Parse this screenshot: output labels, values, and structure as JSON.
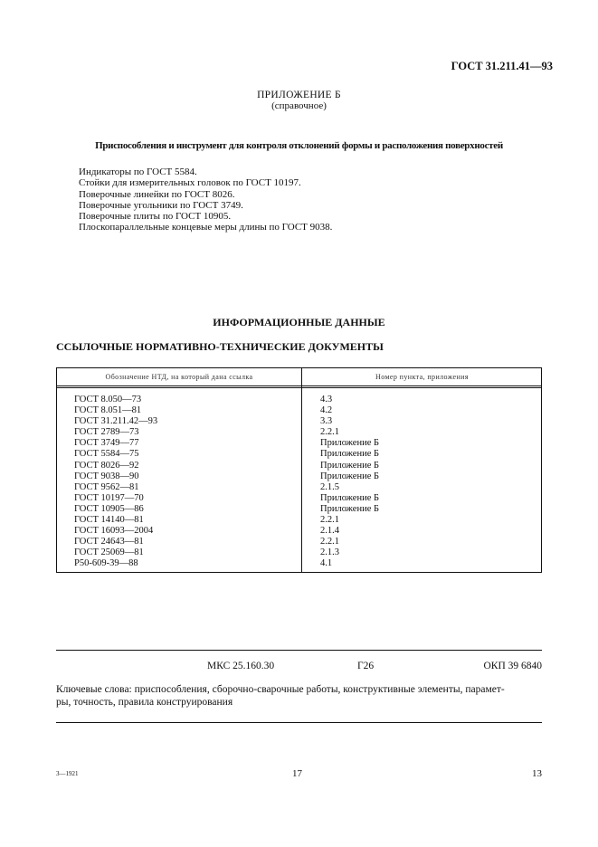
{
  "header": {
    "doc_code": "ГОСТ 31.211.41—93"
  },
  "appendix": {
    "title": "ПРИЛОЖЕНИЕ Б",
    "subtitle": "(справочное)",
    "heading": "Приспособления и инструмент для контроля отклонений формы и расположения поверхностей",
    "items": [
      "Индикаторы по ГОСТ 5584.",
      "Стойки для измерительных головок по ГОСТ 10197.",
      "Поверочные линейки по ГОСТ 8026.",
      "Поверочные угольники по ГОСТ 3749.",
      "Поверочные плиты по ГОСТ 10905.",
      "Плоскопараллельные концевые меры длины по ГОСТ 9038."
    ]
  },
  "info": {
    "title": "ИНФОРМАЦИОННЫЕ ДАННЫЕ",
    "subtitle": "ССЫЛОЧНЫЕ НОРМАТИВНО-ТЕХНИЧЕСКИЕ ДОКУМЕНТЫ"
  },
  "table": {
    "headers": [
      "Обозначение НТД, на который дана ссылка",
      "Номер пункта, приложения"
    ],
    "rows": [
      [
        "ГОСТ 8.050—73",
        "4.3"
      ],
      [
        "ГОСТ 8.051—81",
        "4.2"
      ],
      [
        "ГОСТ 31.211.42—93",
        "3.3"
      ],
      [
        "ГОСТ 2789—73",
        "2.2.1"
      ],
      [
        "ГОСТ 3749—77",
        "Приложение Б"
      ],
      [
        "ГОСТ 5584—75",
        "Приложение Б"
      ],
      [
        "ГОСТ 8026—92",
        "Приложение Б"
      ],
      [
        "ГОСТ 9038—90",
        "Приложение Б"
      ],
      [
        "ГОСТ 9562—81",
        "2.1.5"
      ],
      [
        "ГОСТ 10197—70",
        "Приложение Б"
      ],
      [
        "ГОСТ 10905—86",
        "Приложение Б"
      ],
      [
        "ГОСТ 14140—81",
        "2.2.1"
      ],
      [
        "ГОСТ 16093—2004",
        "2.1.4"
      ],
      [
        "ГОСТ 24643—81",
        "2.2.1"
      ],
      [
        "ГОСТ 25069—81",
        "2.1.3"
      ],
      [
        "Р50-609-39—88",
        "4.1"
      ]
    ]
  },
  "classification": {
    "mks": "МКС 25.160.30",
    "group": "Г26",
    "okp": "ОКП 39 6840"
  },
  "keywords": {
    "line1": "Ключевые слова: приспособления, сборочно-сварочные работы, конструктивные элементы, парамет-",
    "line2": "ры, точность, правила конструирования"
  },
  "footer": {
    "order": "3—1921",
    "center_page": "17",
    "page": "13"
  }
}
